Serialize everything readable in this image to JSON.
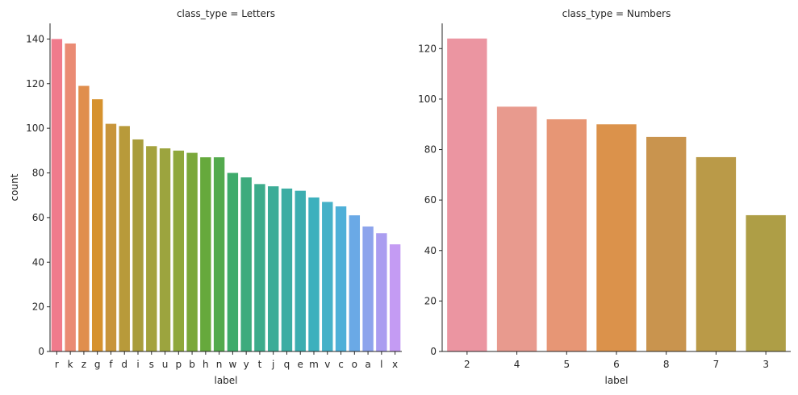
{
  "chart_data": [
    {
      "type": "bar",
      "title": "class_type = Letters",
      "xlabel": "label",
      "ylabel": "count",
      "ylim": [
        0,
        147
      ],
      "yticks": [
        0,
        20,
        40,
        60,
        80,
        100,
        120,
        140
      ],
      "categories": [
        "r",
        "k",
        "z",
        "g",
        "f",
        "d",
        "i",
        "s",
        "u",
        "p",
        "b",
        "h",
        "n",
        "w",
        "y",
        "t",
        "j",
        "q",
        "e",
        "m",
        "v",
        "c",
        "o",
        "a",
        "l",
        "x"
      ],
      "values": [
        140,
        138,
        119,
        113,
        102,
        101,
        95,
        92,
        91,
        90,
        89,
        87,
        87,
        80,
        78,
        75,
        74,
        73,
        72,
        69,
        67,
        65,
        61,
        56,
        53,
        48
      ],
      "colors": [
        "#f07b8c",
        "#ea8b74",
        "#e08e4d",
        "#d6922e",
        "#c8953a",
        "#b89a3a",
        "#a99d3c",
        "#a4a23d",
        "#9ca43e",
        "#8fa83b",
        "#7ba83b",
        "#66a93c",
        "#53aa4d",
        "#3eab6b",
        "#3dab7d",
        "#3dac8b",
        "#3cac97",
        "#3cada3",
        "#3caeb0",
        "#3db0bd",
        "#46b1c8",
        "#4eb0d8",
        "#6aa9e6",
        "#8da4ec",
        "#aa9df0",
        "#c49bf3"
      ]
    },
    {
      "type": "bar",
      "title": "class_type = Numbers",
      "xlabel": "label",
      "ylabel": "",
      "ylim": [
        0,
        130
      ],
      "yticks": [
        0,
        20,
        40,
        60,
        80,
        100,
        120
      ],
      "categories": [
        "2",
        "4",
        "5",
        "6",
        "8",
        "7",
        "3"
      ],
      "values": [
        124,
        97,
        92,
        90,
        85,
        77,
        54
      ],
      "colors": [
        "#eb95a1",
        "#e89a8e",
        "#e79675",
        "#db924b",
        "#c9944e",
        "#ba9a48",
        "#ae9e46"
      ]
    }
  ]
}
